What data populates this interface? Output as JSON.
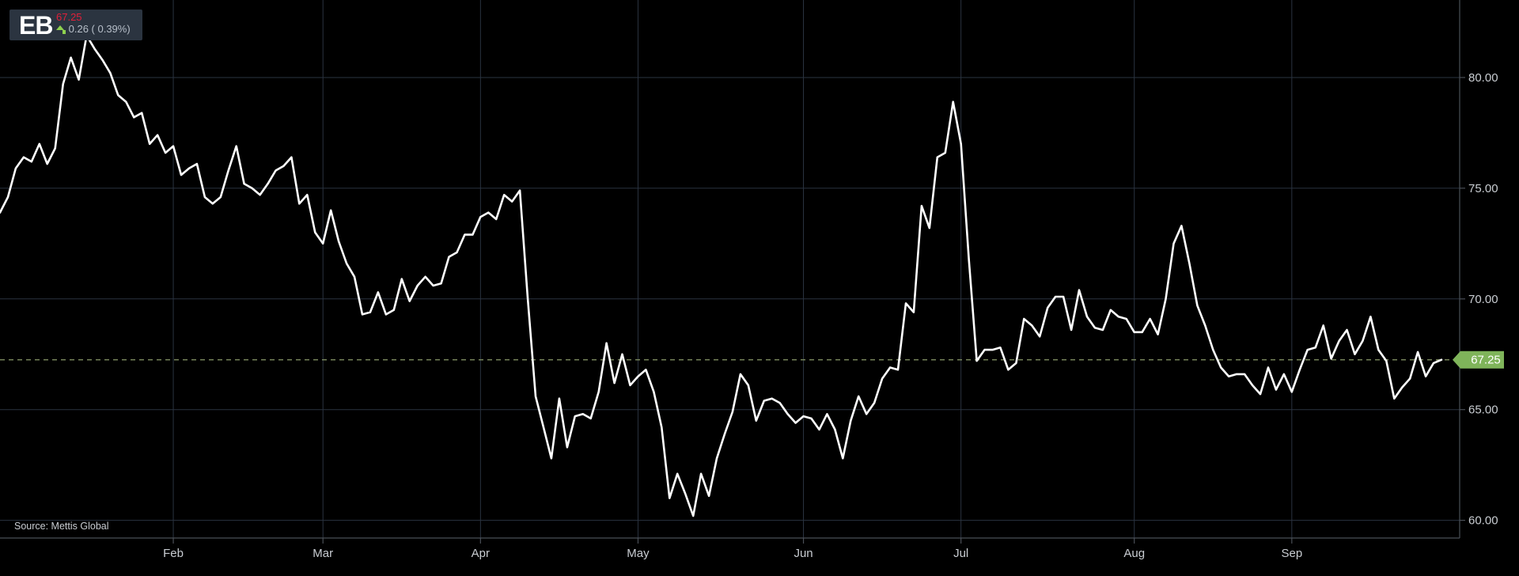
{
  "ticker": {
    "symbol": "EB",
    "price": "67.25",
    "change": "0.26 ( 0.39%)",
    "colors": {
      "price": "#e0203a",
      "up": "#8fd14f",
      "box": "#2b3440"
    }
  },
  "source_text": "Source: Mettis Global",
  "last_price_label": "67.25",
  "chart_data": {
    "type": "line",
    "title": "",
    "xlabel": "",
    "ylabel": "",
    "ylim": [
      59.2,
      83.5
    ],
    "y_ticks": [
      {
        "value": 60,
        "label": "60.00"
      },
      {
        "value": 65,
        "label": "65.00"
      },
      {
        "value": 70,
        "label": "70.00"
      },
      {
        "value": 75,
        "label": "75.00"
      },
      {
        "value": 80,
        "label": "80.00"
      }
    ],
    "x_ticks": [
      "Feb",
      "Mar",
      "Apr",
      "May",
      "Jun",
      "Jul",
      "Aug",
      "Sep"
    ],
    "x_tick_index": [
      22,
      41,
      61,
      81,
      102,
      122,
      144,
      164
    ],
    "grid": true,
    "reference_line": {
      "value": 67.25,
      "style": "dashed"
    },
    "line_color": "#ffffff",
    "last_tag_color": "#7fb45a",
    "series": [
      {
        "values": [
          73.9,
          74.6,
          75.9,
          76.4,
          76.2,
          77.0,
          76.1,
          76.8,
          79.7,
          80.9,
          79.9,
          81.9,
          81.3,
          80.8,
          80.2,
          79.2,
          78.9,
          78.2,
          78.4,
          77.0,
          77.4,
          76.6,
          76.9,
          75.6,
          75.9,
          76.1,
          74.6,
          74.3,
          74.6,
          75.8,
          76.9,
          75.2,
          75.0,
          74.7,
          75.2,
          75.8,
          76.0,
          76.4,
          74.3,
          74.7,
          73.0,
          72.5,
          74.0,
          72.6,
          71.6,
          71.0,
          69.3,
          69.4,
          70.3,
          69.3,
          69.5,
          70.9,
          69.9,
          70.6,
          71.0,
          70.6,
          70.7,
          71.9,
          72.1,
          72.9,
          72.9,
          73.7,
          73.9,
          73.6,
          74.7,
          74.4,
          74.9,
          70.0,
          65.6,
          64.2,
          62.8,
          65.5,
          63.3,
          64.7,
          64.8,
          64.6,
          65.8,
          68.0,
          66.2,
          67.5,
          66.1,
          66.5,
          66.8,
          65.8,
          64.2,
          61.0,
          62.1,
          61.2,
          60.2,
          62.1,
          61.1,
          62.8,
          63.9,
          64.9,
          66.6,
          66.1,
          64.5,
          65.4,
          65.5,
          65.3,
          64.8,
          64.4,
          64.7,
          64.6,
          64.1,
          64.8,
          64.1,
          62.8,
          64.5,
          65.6,
          64.8,
          65.3,
          66.4,
          66.9,
          66.8,
          69.8,
          69.4,
          74.2,
          73.2,
          76.4,
          76.6,
          78.9,
          77.0,
          71.8,
          67.2,
          67.7,
          67.7,
          67.8,
          66.8,
          67.1,
          69.1,
          68.8,
          68.3,
          69.6,
          70.1,
          70.1,
          68.6,
          70.4,
          69.2,
          68.7,
          68.6,
          69.5,
          69.2,
          69.1,
          68.5,
          68.5,
          69.1,
          68.4,
          70.0,
          72.5,
          73.3,
          71.6,
          69.7,
          68.8,
          67.7,
          66.9,
          66.5,
          66.6,
          66.6,
          66.1,
          65.7,
          66.9,
          65.9,
          66.6,
          65.8,
          66.8,
          67.7,
          67.8,
          68.8,
          67.3,
          68.1,
          68.6,
          67.5,
          68.1,
          69.2,
          67.7,
          67.2,
          65.5,
          66.0,
          66.4,
          67.6,
          66.5,
          67.1,
          67.25
        ]
      }
    ]
  }
}
